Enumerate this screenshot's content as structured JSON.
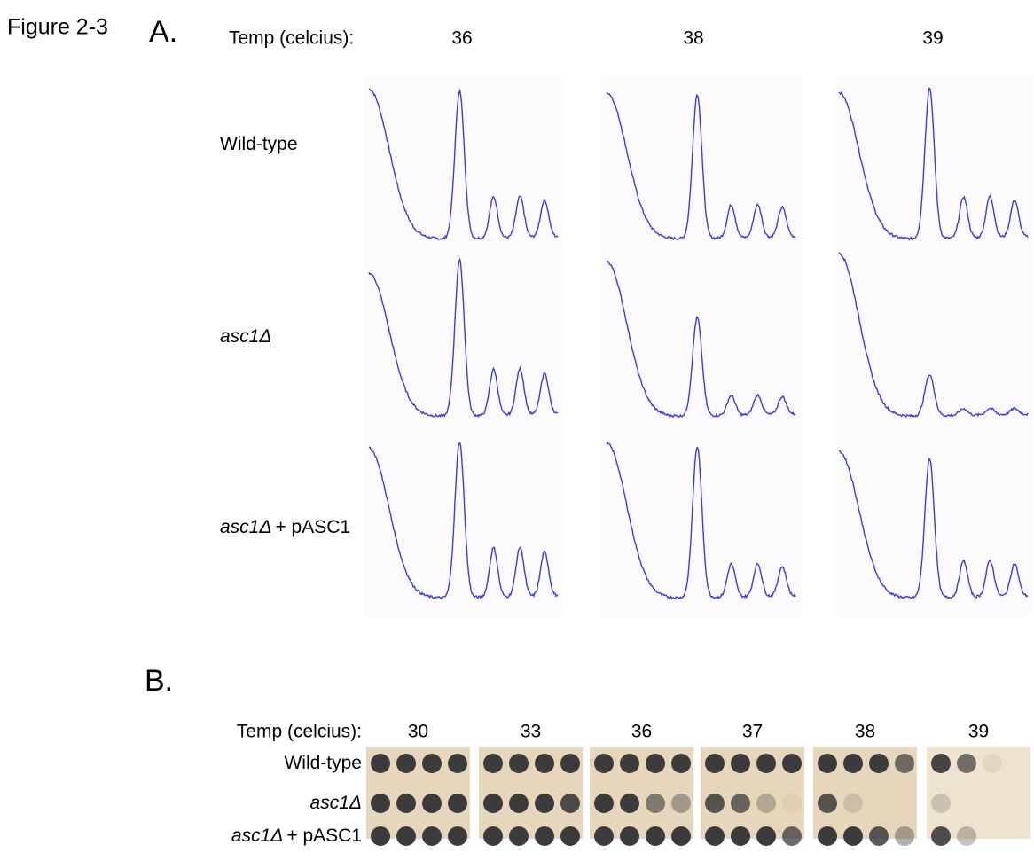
{
  "figure": {
    "label": "Figure 2-3"
  },
  "panel_a": {
    "label": "A.",
    "temp_label": "Temp (celcius):",
    "temps": [
      36,
      38,
      39
    ],
    "rows": [
      {
        "name": "Wild-type"
      },
      {
        "name": "asc1Δ"
      },
      {
        "name": "asc1Δ",
        "suffix": "+ pASC1"
      }
    ]
  },
  "panel_b": {
    "label": "B.",
    "temp_label": "Temp (celcius):",
    "temps": [
      30,
      33,
      36,
      37,
      38,
      39
    ],
    "rows": [
      {
        "name": "Wild-type"
      },
      {
        "name": "asc1Δ"
      },
      {
        "name": "asc1Δ",
        "suffix": "+ pASC1"
      }
    ]
  }
}
